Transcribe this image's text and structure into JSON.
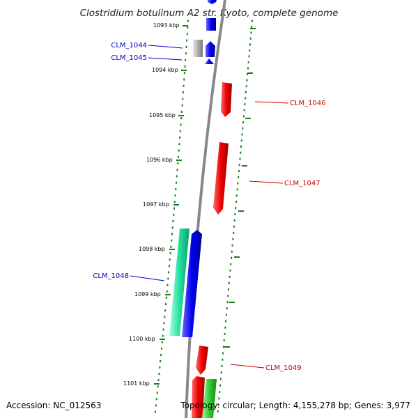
{
  "title": "Clostridium botulinum A2 str. Kyoto, complete genome",
  "footer": {
    "accession": "Accession: NC_012563",
    "topology": "Topology: circular; Length: 4,155,278 bp; Genes: 3,977"
  },
  "ruler": {
    "ticks": [
      "1093 kbp",
      "1094 kbp",
      "1095 kbp",
      "1096 kbp",
      "1097 kbp",
      "1098 kbp",
      "1099 kbp",
      "1100 kbp",
      "1101 kbp"
    ]
  },
  "genes": {
    "labels": [
      "CLM_1044",
      "CLM_1045",
      "CLM_1046",
      "CLM_1047",
      "CLM_1048",
      "CLM_1049"
    ]
  },
  "colors": {
    "backbone": "#888888",
    "forward_strand": "#0000ee",
    "reverse_strand": "#ee0000",
    "rna": "#aaaaaa",
    "green_feature": "#33cc33",
    "teal_feature": "#22e0a0",
    "dots": "#1a7a1a"
  }
}
